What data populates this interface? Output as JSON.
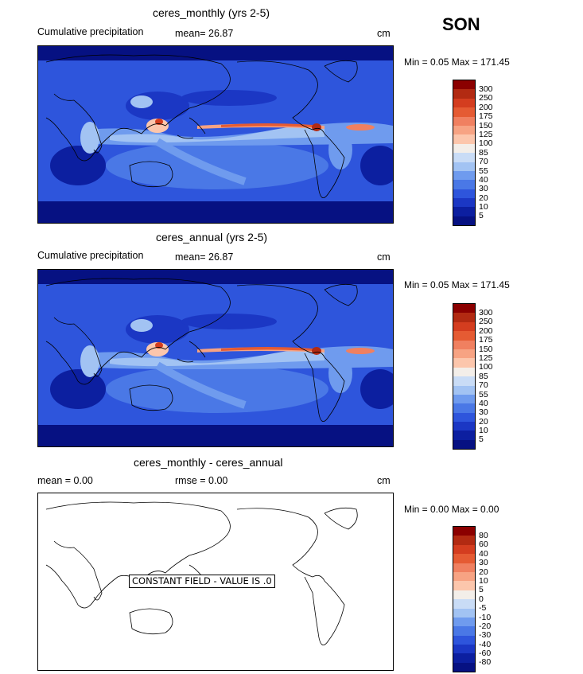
{
  "season": "SON",
  "panels": [
    {
      "title": "ceres_monthly (yrs 2-5)",
      "left_label": "Cumulative precipitation",
      "mean_text": "mean=   26.87",
      "units": "cm",
      "minmax": "Min =    0.05  Max = 171.45",
      "levels": [
        "300",
        "250",
        "200",
        "175",
        "150",
        "125",
        "100",
        "85",
        "70",
        "55",
        "40",
        "30",
        "20",
        "10",
        "5"
      ],
      "colors": [
        "#8b0000",
        "#b22a12",
        "#d43d1f",
        "#e55b33",
        "#f08060",
        "#f7a383",
        "#fcc6ac",
        "#f3eee9",
        "#c9dcf6",
        "#a2c3f3",
        "#6f9bee",
        "#4a78e6",
        "#2e55dc",
        "#1b37c4",
        "#0c1fa0",
        "#061182"
      ]
    },
    {
      "title": "ceres_annual (yrs 2-5)",
      "left_label": "Cumulative precipitation",
      "mean_text": "mean=   26.87",
      "units": "cm",
      "minmax": "Min =    0.05  Max = 171.45",
      "levels": [
        "300",
        "250",
        "200",
        "175",
        "150",
        "125",
        "100",
        "85",
        "70",
        "55",
        "40",
        "30",
        "20",
        "10",
        "5"
      ],
      "colors": [
        "#8b0000",
        "#b22a12",
        "#d43d1f",
        "#e55b33",
        "#f08060",
        "#f7a383",
        "#fcc6ac",
        "#f3eee9",
        "#c9dcf6",
        "#a2c3f3",
        "#6f9bee",
        "#4a78e6",
        "#2e55dc",
        "#1b37c4",
        "#0c1fa0",
        "#061182"
      ]
    },
    {
      "title": "ceres_monthly - ceres_annual",
      "mean_text": "mean =      0.00",
      "rmse_text": "rmse =      0.00",
      "units": "cm",
      "minmax": "Min =    0.00  Max =     0.00",
      "levels": [
        "80",
        "60",
        "40",
        "30",
        "20",
        "10",
        "5",
        "0",
        "-5",
        "-10",
        "-20",
        "-30",
        "-40",
        "-60",
        "-80"
      ],
      "colors": [
        "#8b0000",
        "#b22a12",
        "#d43d1f",
        "#e55b33",
        "#f08060",
        "#f7a383",
        "#fcc6ac",
        "#f3eee9",
        "#c9dcf6",
        "#a2c3f3",
        "#6f9bee",
        "#4a78e6",
        "#2e55dc",
        "#1b37c4",
        "#0c1fa0",
        "#061182"
      ],
      "constant_label": "CONSTANT FIELD - VALUE IS .0"
    }
  ]
}
